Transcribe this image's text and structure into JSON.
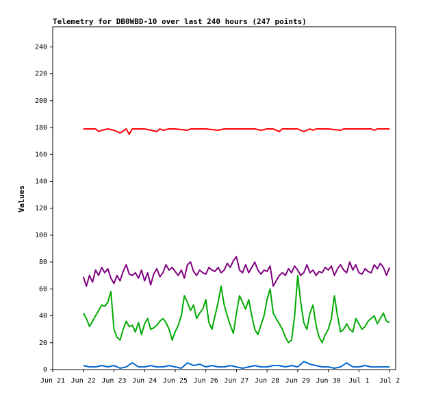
{
  "chart_data": {
    "type": "line",
    "title": "Telemetry for DB0WBD-10 over last 240 hours (247 points)",
    "xlabel": "",
    "ylabel": "Values",
    "ylim": [
      0,
      255
    ],
    "yticks": [
      0,
      20,
      40,
      60,
      80,
      100,
      120,
      140,
      160,
      180,
      200,
      220,
      240
    ],
    "x_range_days": [
      0,
      11.2
    ],
    "x_ticks": [
      {
        "label": "Jun 21",
        "day": 0
      },
      {
        "label": "Jun 22",
        "day": 1
      },
      {
        "label": "Jun 23",
        "day": 2
      },
      {
        "label": "Jun 24",
        "day": 3
      },
      {
        "label": "Jun 25",
        "day": 4
      },
      {
        "label": "Jun 26",
        "day": 5
      },
      {
        "label": "Jun 27",
        "day": 6
      },
      {
        "label": "Jun 28",
        "day": 7
      },
      {
        "label": "Jun 29",
        "day": 8
      },
      {
        "label": "Jun 30",
        "day": 9
      },
      {
        "label": "Jul 1",
        "day": 10
      },
      {
        "label": "Jul 2",
        "day": 11
      }
    ],
    "grid": false,
    "legend": "none",
    "series": [
      {
        "color": "#ff0000",
        "x": [
          1.0,
          1.4,
          1.5,
          1.6,
          1.8,
          2.0,
          2.2,
          2.4,
          2.5,
          2.6,
          2.8,
          3.0,
          3.4,
          3.5,
          3.6,
          3.8,
          4.0,
          4.4,
          4.5,
          4.6,
          5.0,
          5.4,
          5.6,
          6.0,
          6.6,
          6.8,
          7.0,
          7.2,
          7.4,
          7.5,
          7.6,
          8.0,
          8.2,
          8.4,
          8.5,
          8.6,
          9.0,
          9.4,
          9.5,
          9.6,
          10.0,
          10.4,
          10.5,
          10.6,
          11.0
        ],
        "y": [
          179,
          179,
          177,
          178,
          179,
          178,
          176,
          179,
          175,
          179,
          179,
          179,
          177,
          179,
          178,
          179,
          179,
          178,
          179,
          179,
          179,
          178,
          179,
          179,
          179,
          178,
          179,
          179,
          177,
          179,
          179,
          179,
          177,
          179,
          178,
          179,
          179,
          178,
          179,
          179,
          179,
          179,
          178,
          179,
          179
        ]
      },
      {
        "color": "#800080",
        "x": [
          1.0,
          1.1,
          1.2,
          1.3,
          1.4,
          1.5,
          1.6,
          1.7,
          1.8,
          1.9,
          2.0,
          2.1,
          2.2,
          2.3,
          2.4,
          2.5,
          2.6,
          2.7,
          2.8,
          2.9,
          3.0,
          3.1,
          3.2,
          3.3,
          3.4,
          3.5,
          3.6,
          3.7,
          3.8,
          3.9,
          4.0,
          4.1,
          4.2,
          4.3,
          4.4,
          4.5,
          4.6,
          4.7,
          4.8,
          4.9,
          5.0,
          5.1,
          5.2,
          5.3,
          5.4,
          5.5,
          5.6,
          5.7,
          5.8,
          5.9,
          6.0,
          6.1,
          6.2,
          6.3,
          6.4,
          6.5,
          6.6,
          6.7,
          6.8,
          6.9,
          7.0,
          7.1,
          7.2,
          7.3,
          7.4,
          7.5,
          7.6,
          7.7,
          7.8,
          7.9,
          8.0,
          8.1,
          8.2,
          8.3,
          8.4,
          8.5,
          8.6,
          8.7,
          8.8,
          8.9,
          9.0,
          9.1,
          9.2,
          9.3,
          9.4,
          9.5,
          9.6,
          9.7,
          9.8,
          9.9,
          10.0,
          10.1,
          10.2,
          10.3,
          10.4,
          10.5,
          10.6,
          10.7,
          10.8,
          10.9,
          11.0
        ],
        "y": [
          69,
          62,
          70,
          65,
          74,
          70,
          76,
          72,
          75,
          68,
          64,
          70,
          66,
          73,
          78,
          71,
          70,
          72,
          68,
          74,
          66,
          72,
          63,
          71,
          75,
          69,
          72,
          78,
          74,
          76,
          73,
          70,
          74,
          68,
          78,
          80,
          73,
          70,
          74,
          72,
          71,
          76,
          74,
          73,
          76,
          72,
          74,
          79,
          76,
          81,
          84,
          74,
          72,
          78,
          72,
          76,
          80,
          74,
          71,
          74,
          73,
          77,
          62,
          66,
          70,
          72,
          70,
          75,
          72,
          77,
          74,
          70,
          72,
          78,
          72,
          74,
          70,
          73,
          72,
          76,
          74,
          77,
          70,
          75,
          78,
          74,
          72,
          80,
          74,
          78,
          72,
          71,
          75,
          73,
          72,
          78,
          75,
          79,
          76,
          70,
          76
        ]
      },
      {
        "color": "#00aa00",
        "x": [
          1.0,
          1.1,
          1.2,
          1.3,
          1.4,
          1.5,
          1.6,
          1.7,
          1.8,
          1.9,
          2.0,
          2.1,
          2.2,
          2.3,
          2.4,
          2.5,
          2.6,
          2.7,
          2.8,
          2.9,
          3.0,
          3.1,
          3.2,
          3.3,
          3.4,
          3.5,
          3.6,
          3.7,
          3.8,
          3.9,
          4.0,
          4.1,
          4.2,
          4.3,
          4.4,
          4.5,
          4.6,
          4.7,
          4.8,
          4.9,
          5.0,
          5.1,
          5.2,
          5.3,
          5.4,
          5.5,
          5.6,
          5.7,
          5.8,
          5.9,
          6.0,
          6.1,
          6.2,
          6.3,
          6.4,
          6.5,
          6.6,
          6.7,
          6.8,
          6.9,
          7.0,
          7.1,
          7.2,
          7.3,
          7.4,
          7.5,
          7.6,
          7.7,
          7.8,
          7.9,
          8.0,
          8.1,
          8.2,
          8.3,
          8.4,
          8.5,
          8.6,
          8.7,
          8.8,
          8.9,
          9.0,
          9.1,
          9.2,
          9.3,
          9.4,
          9.5,
          9.6,
          9.7,
          9.8,
          9.9,
          10.0,
          10.1,
          10.2,
          10.3,
          10.4,
          10.5,
          10.6,
          10.7,
          10.8,
          10.9,
          11.0
        ],
        "y": [
          42,
          38,
          32,
          36,
          40,
          44,
          48,
          47,
          50,
          58,
          30,
          24,
          22,
          30,
          36,
          32,
          33,
          28,
          35,
          26,
          34,
          38,
          30,
          31,
          33,
          36,
          38,
          35,
          30,
          22,
          28,
          33,
          40,
          55,
          50,
          44,
          48,
          38,
          42,
          45,
          52,
          35,
          30,
          40,
          50,
          62,
          48,
          40,
          33,
          27,
          42,
          55,
          50,
          45,
          52,
          40,
          30,
          26,
          33,
          40,
          52,
          60,
          42,
          38,
          34,
          30,
          24,
          20,
          22,
          40,
          70,
          50,
          35,
          30,
          42,
          48,
          33,
          24,
          20,
          26,
          30,
          38,
          55,
          40,
          28,
          30,
          34,
          30,
          28,
          38,
          34,
          30,
          32,
          36,
          38,
          40,
          34,
          38,
          42,
          36,
          35
        ]
      },
      {
        "color": "#0066cc",
        "x": [
          1.0,
          1.2,
          1.4,
          1.6,
          1.8,
          2.0,
          2.2,
          2.4,
          2.6,
          2.8,
          3.0,
          3.2,
          3.4,
          3.6,
          3.8,
          4.0,
          4.2,
          4.4,
          4.6,
          4.8,
          5.0,
          5.2,
          5.4,
          5.6,
          5.8,
          6.0,
          6.2,
          6.4,
          6.6,
          6.8,
          7.0,
          7.2,
          7.4,
          7.6,
          7.8,
          8.0,
          8.2,
          8.4,
          8.6,
          8.8,
          9.0,
          9.2,
          9.4,
          9.6,
          9.8,
          10.0,
          10.2,
          10.4,
          10.6,
          10.8,
          11.0
        ],
        "y": [
          3,
          2,
          2,
          3,
          2,
          3,
          1,
          2,
          5,
          2,
          2,
          3,
          2,
          2,
          3,
          2,
          1,
          5,
          3,
          4,
          2,
          3,
          2,
          2,
          3,
          2,
          1,
          2,
          3,
          2,
          2,
          3,
          3,
          2,
          3,
          2,
          6,
          4,
          3,
          2,
          2,
          1,
          2,
          5,
          2,
          2,
          3,
          2,
          2,
          2,
          2
        ]
      }
    ]
  }
}
